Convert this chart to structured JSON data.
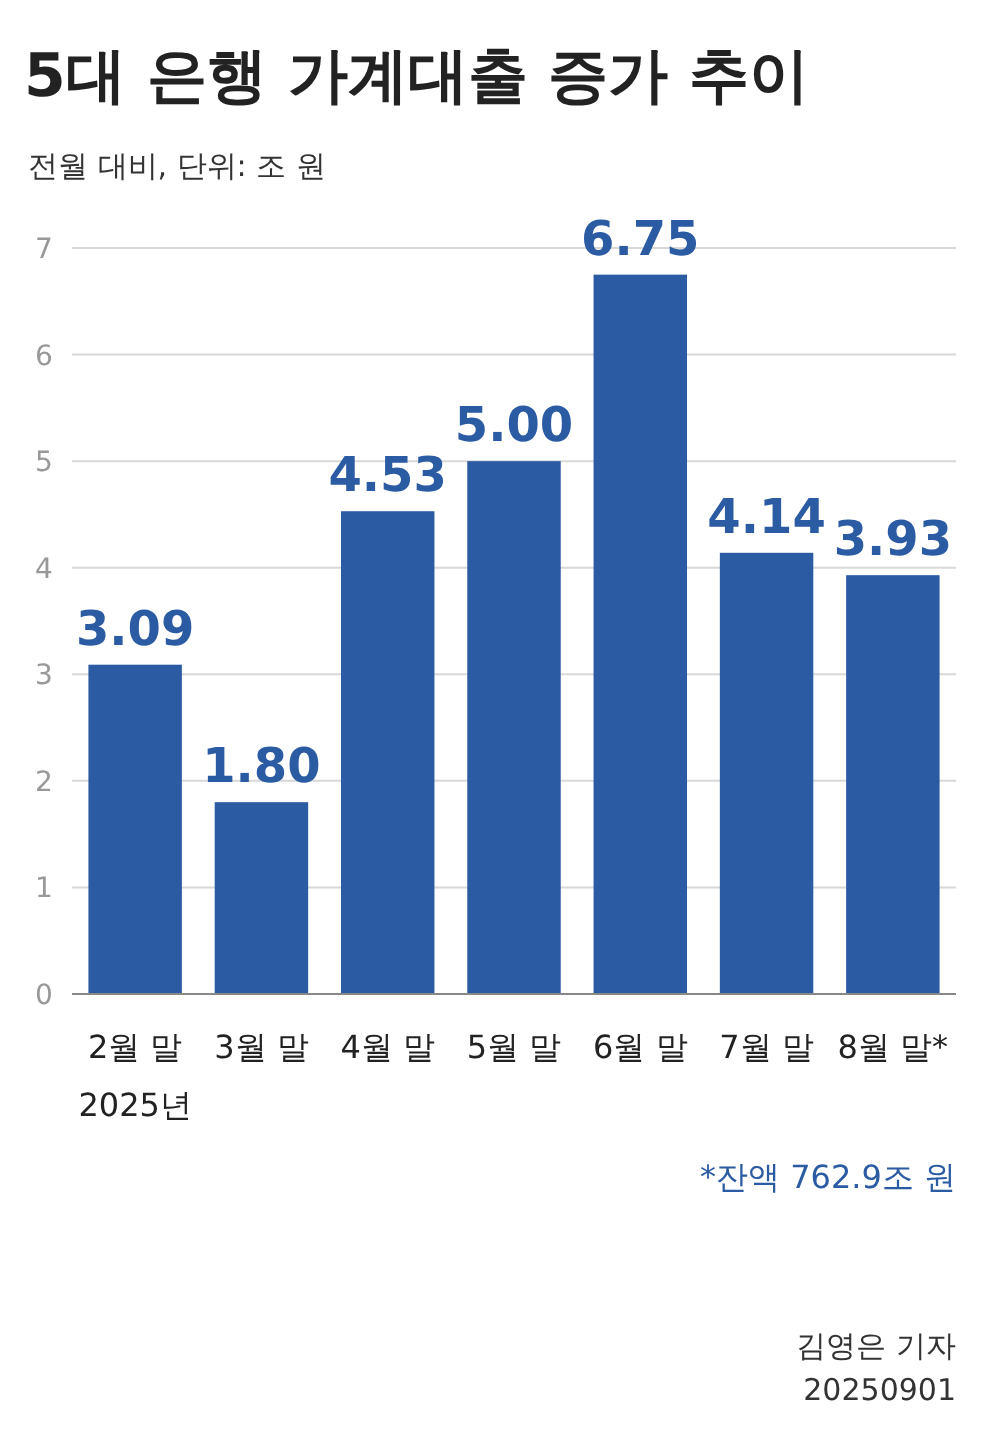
{
  "chart_data": {
    "type": "bar",
    "title": "5대 은행 가계대출 증가 추이",
    "subtitle": "전월 대비, 단위: 조 원",
    "categories": [
      "2월 말",
      "3월 말",
      "4월 말",
      "5월 말",
      "6월 말",
      "7월 말",
      "8월 말*"
    ],
    "values": [
      3.09,
      1.8,
      4.53,
      5.0,
      6.75,
      4.14,
      3.93
    ],
    "value_labels": [
      "3.09",
      "1.80",
      "4.53",
      "5.00",
      "6.75",
      "4.14",
      "3.93"
    ],
    "color": "#2b5ba3",
    "ylim": [
      0,
      7
    ],
    "yticks": [
      0,
      1,
      2,
      3,
      4,
      5,
      6,
      7
    ],
    "grid": "y",
    "annotations": [
      "2025년",
      "*잔액 762.9조 원",
      "김영은 기자",
      "20250901"
    ]
  }
}
